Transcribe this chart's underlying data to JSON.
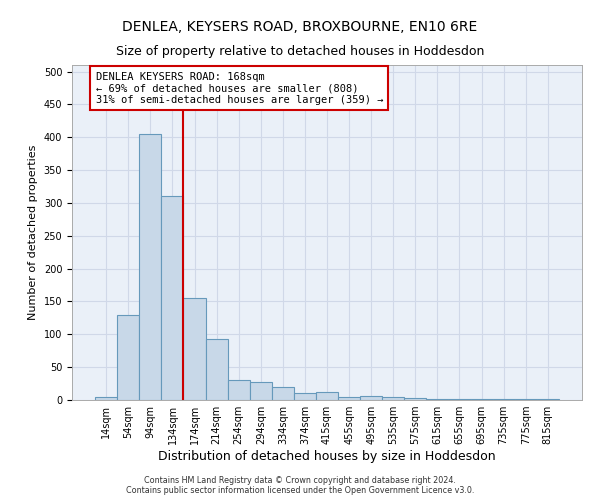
{
  "title": "DENLEA, KEYSERS ROAD, BROXBOURNE, EN10 6RE",
  "subtitle": "Size of property relative to detached houses in Hoddesdon",
  "xlabel": "Distribution of detached houses by size in Hoddesdon",
  "ylabel": "Number of detached properties",
  "footnote1": "Contains HM Land Registry data © Crown copyright and database right 2024.",
  "footnote2": "Contains public sector information licensed under the Open Government Licence v3.0.",
  "categories": [
    "14sqm",
    "54sqm",
    "94sqm",
    "134sqm",
    "174sqm",
    "214sqm",
    "254sqm",
    "294sqm",
    "334sqm",
    "374sqm",
    "415sqm",
    "455sqm",
    "495sqm",
    "535sqm",
    "575sqm",
    "615sqm",
    "655sqm",
    "695sqm",
    "735sqm",
    "775sqm",
    "815sqm"
  ],
  "values": [
    5,
    130,
    405,
    310,
    155,
    93,
    30,
    27,
    20,
    10,
    12,
    5,
    6,
    5,
    3,
    2,
    1,
    1,
    1,
    1,
    1
  ],
  "bar_color": "#c8d8e8",
  "bar_edge_color": "#6699bb",
  "bar_edge_width": 0.8,
  "vline_x": 3.5,
  "vline_color": "#cc0000",
  "annotation_line1": "DENLEA KEYSERS ROAD: 168sqm",
  "annotation_line2": "← 69% of detached houses are smaller (808)",
  "annotation_line3": "31% of semi-detached houses are larger (359) →",
  "annotation_box_color": "#ffffff",
  "annotation_box_edge": "#cc0000",
  "ylim": [
    0,
    510
  ],
  "yticks": [
    0,
    50,
    100,
    150,
    200,
    250,
    300,
    350,
    400,
    450,
    500
  ],
  "grid_color": "#d0d8e8",
  "background_color": "#eaf0f8",
  "title_fontsize": 10,
  "subtitle_fontsize": 9,
  "tick_fontsize": 7,
  "ylabel_fontsize": 8,
  "xlabel_fontsize": 9,
  "annotation_fontsize": 7.5,
  "footnote_fontsize": 5.8
}
